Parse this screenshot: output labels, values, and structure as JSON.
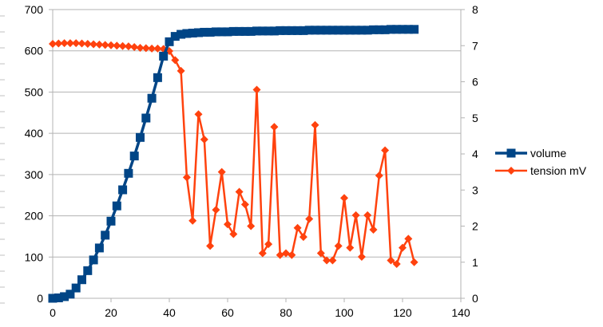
{
  "chart_data": {
    "type": "line",
    "title": "",
    "xlabel": "",
    "ylabel": "",
    "y2label": "",
    "xlim": [
      0,
      140
    ],
    "ylim": [
      0,
      700
    ],
    "y2lim": [
      0,
      8
    ],
    "x_ticks": [
      0,
      20,
      40,
      60,
      80,
      100,
      120,
      140
    ],
    "y_ticks": [
      0,
      100,
      200,
      300,
      400,
      500,
      600,
      700
    ],
    "y2_ticks": [
      0,
      1,
      2,
      3,
      4,
      5,
      6,
      7,
      8
    ],
    "grid": true,
    "legend_position": "right",
    "series": [
      {
        "name": "volume",
        "axis": "left",
        "color": "#004586",
        "marker": "square",
        "x": [
          0,
          2,
          4,
          6,
          8,
          10,
          12,
          14,
          16,
          18,
          20,
          22,
          24,
          26,
          28,
          30,
          32,
          34,
          36,
          38,
          40,
          42,
          44,
          46,
          48,
          50,
          52,
          54,
          56,
          58,
          60,
          62,
          64,
          66,
          68,
          70,
          72,
          74,
          76,
          78,
          80,
          82,
          84,
          86,
          88,
          90,
          92,
          94,
          96,
          98,
          100,
          102,
          104,
          106,
          108,
          110,
          112,
          114,
          116,
          118,
          120,
          122,
          124
        ],
        "values": [
          0,
          1,
          4,
          10,
          25,
          45,
          67,
          93,
          122,
          153,
          187,
          224,
          263,
          303,
          345,
          390,
          437,
          485,
          535,
          587,
          622,
          635,
          640,
          642,
          643,
          644,
          645,
          645,
          646,
          646,
          646,
          647,
          647,
          647,
          647,
          648,
          648,
          648,
          648,
          649,
          649,
          649,
          649,
          649,
          650,
          650,
          650,
          650,
          650,
          650,
          650,
          650,
          650,
          650,
          650,
          651,
          651,
          651,
          652,
          652,
          652,
          652,
          652
        ]
      },
      {
        "name": "tension mV",
        "axis": "right",
        "color": "#ff420e",
        "marker": "diamond",
        "x": [
          0,
          2,
          4,
          6,
          8,
          10,
          12,
          14,
          16,
          18,
          20,
          22,
          24,
          26,
          28,
          30,
          32,
          34,
          36,
          38,
          40,
          42,
          44,
          46,
          48,
          50,
          52,
          54,
          56,
          58,
          60,
          62,
          64,
          66,
          68,
          70,
          72,
          74,
          76,
          78,
          80,
          82,
          84,
          86,
          88,
          90,
          92,
          94,
          96,
          98,
          100,
          102,
          104,
          106,
          108,
          110,
          112,
          114,
          116,
          118,
          120,
          122,
          124
        ],
        "values": [
          7.05,
          7.06,
          7.07,
          7.07,
          7.07,
          7.06,
          7.05,
          7.04,
          7.03,
          7.02,
          7.01,
          7.0,
          6.99,
          6.98,
          6.96,
          6.94,
          6.93,
          6.92,
          6.92,
          6.91,
          6.85,
          6.6,
          6.3,
          3.35,
          2.15,
          5.1,
          4.4,
          1.45,
          2.45,
          3.5,
          2.05,
          1.78,
          2.95,
          2.6,
          2.0,
          5.78,
          1.25,
          1.5,
          4.75,
          1.2,
          1.25,
          1.2,
          1.95,
          1.7,
          2.2,
          4.8,
          1.25,
          1.05,
          1.05,
          1.45,
          2.78,
          1.4,
          2.3,
          1.15,
          2.3,
          1.9,
          3.4,
          4.1,
          1.05,
          0.95,
          1.4,
          1.65,
          1.0
        ]
      }
    ]
  }
}
